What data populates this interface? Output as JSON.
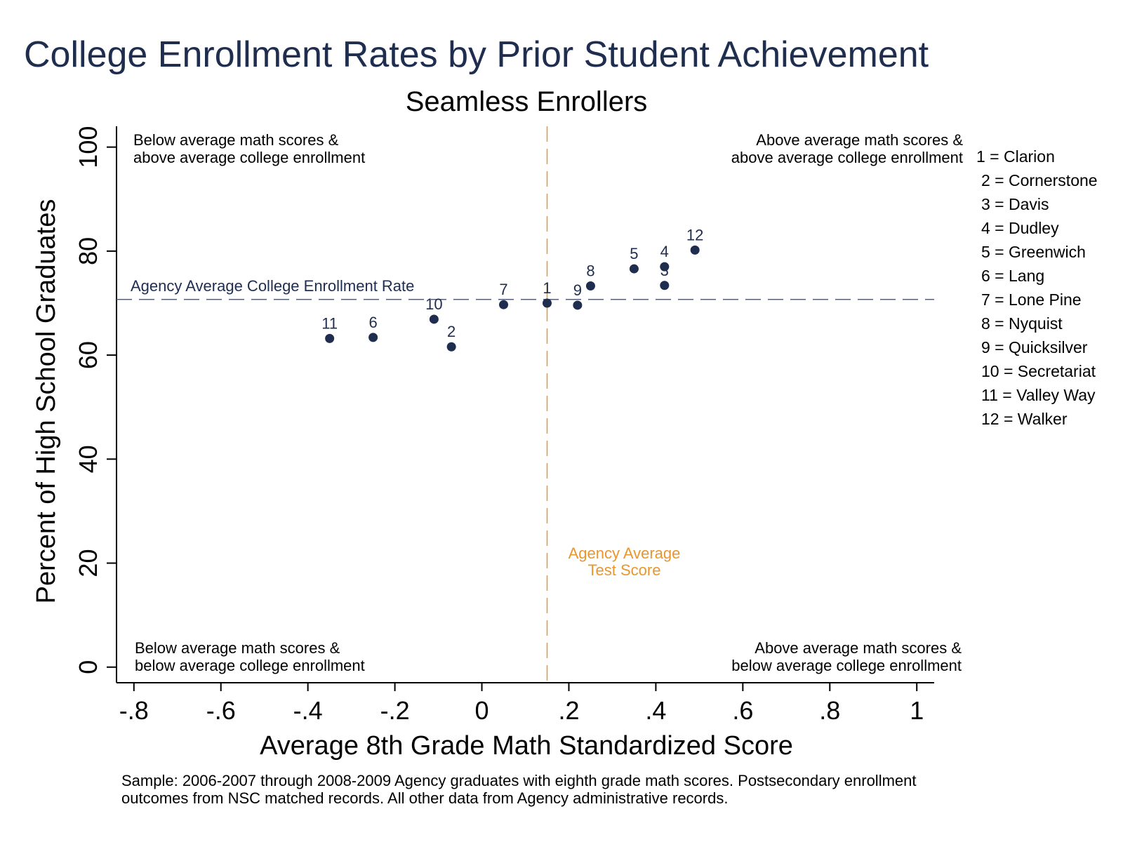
{
  "colors": {
    "point": "#1f2d4f",
    "hline": "#556080",
    "vline": "#e8962e",
    "title": "#1f2d4f"
  },
  "chart_data": {
    "type": "scatter",
    "title": "College Enrollment Rates by Prior Student Achievement",
    "subtitle": "Seamless Enrollers",
    "xlabel": "Average 8th Grade Math Standardized Score",
    "ylabel": "Percent of High School Graduates",
    "xlim": [
      -0.84,
      1.04
    ],
    "ylim": [
      -3,
      104
    ],
    "xticks": [
      -0.8,
      -0.6,
      -0.4,
      -0.2,
      0,
      0.2,
      0.4,
      0.6,
      0.8,
      1
    ],
    "xtick_labels": [
      "-.8",
      "-.6",
      "-.4",
      "-.2",
      "0",
      ".2",
      ".4",
      ".6",
      ".8",
      "1"
    ],
    "yticks": [
      0,
      20,
      40,
      60,
      80,
      100
    ],
    "ytick_labels": [
      "0",
      "20",
      "40",
      "60",
      "80",
      "100"
    ],
    "grid": false,
    "points": [
      {
        "id": "1",
        "x": 0.15,
        "y": 70.0
      },
      {
        "id": "2",
        "x": -0.07,
        "y": 61.6
      },
      {
        "id": "3",
        "x": 0.42,
        "y": 73.4
      },
      {
        "id": "4",
        "x": 0.42,
        "y": 77.0
      },
      {
        "id": "5",
        "x": 0.35,
        "y": 76.6
      },
      {
        "id": "6",
        "x": -0.25,
        "y": 63.4
      },
      {
        "id": "7",
        "x": 0.05,
        "y": 69.7
      },
      {
        "id": "8",
        "x": 0.25,
        "y": 73.3
      },
      {
        "id": "9",
        "x": 0.22,
        "y": 69.6
      },
      {
        "id": "10",
        "x": -0.11,
        "y": 66.9
      },
      {
        "id": "11",
        "x": -0.35,
        "y": 63.2
      },
      {
        "id": "12",
        "x": 0.49,
        "y": 80.2
      }
    ],
    "reference_lines": {
      "horizontal": {
        "y": 70.7,
        "label": "Agency Average College Enrollment Rate"
      },
      "vertical": {
        "x": 0.15,
        "label": [
          "Agency Average",
          "Test Score"
        ]
      }
    },
    "quadrant_labels": {
      "top_left": [
        "Below average math scores &",
        "above average college enrollment"
      ],
      "top_right": [
        "Above average math scores &",
        "above average college enrollment"
      ],
      "bottom_left": [
        "Below average math scores &",
        "below average college enrollment"
      ],
      "bottom_right": [
        "Above average math scores &",
        "below average college enrollment"
      ]
    },
    "legend": [
      "1 = Clarion",
      "2 = Cornerstone",
      "3 = Davis",
      "4 = Dudley",
      "5 = Greenwich",
      "6 = Lang",
      "7 = Lone Pine",
      "8 = Nyquist",
      "9 = Quicksilver",
      "10 = Secretariat",
      "11 = Valley Way",
      "12 = Walker"
    ],
    "legend_position": "right",
    "note": [
      "Sample: 2006-2007 through 2008-2009 Agency graduates with eighth grade math scores. Postsecondary enrollment",
      "outcomes from NSC matched records. All other data from Agency administrative records."
    ]
  }
}
